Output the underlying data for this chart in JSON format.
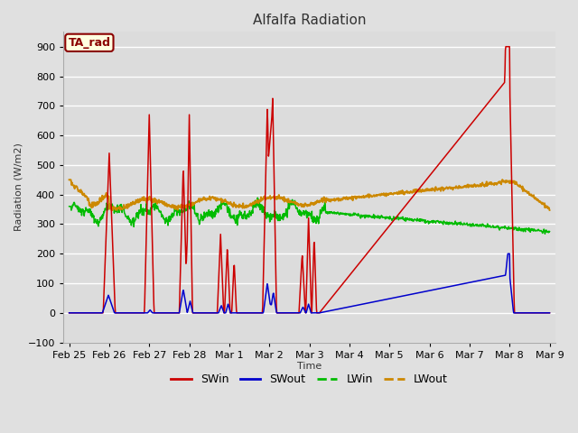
{
  "title": "Alfalfa Radiation",
  "ylabel": "Radiation (W/m2)",
  "xlabel": "Time",
  "ylim": [
    -100,
    950
  ],
  "figsize": [
    6.4,
    4.8
  ],
  "dpi": 100,
  "bg_color": "#e0e0e0",
  "plot_bg_color": "#dcdcdc",
  "grid_color": "white",
  "annotation_text": "TA_rad",
  "annotation_bg": "#ffffe0",
  "annotation_border": "#8b0000",
  "annotation_text_color": "#8b0000",
  "series_colors": {
    "SWin": "#cc0000",
    "SWout": "#0000cc",
    "LWin": "#00bb00",
    "LWout": "#cc8800"
  },
  "x_tick_labels": [
    "Feb 25",
    "Feb 26",
    "Feb 27",
    "Feb 28",
    "Mar 1",
    "Mar 2",
    "Mar 3",
    "Mar 4",
    "Mar 5",
    "Mar 6",
    "Mar 7",
    "Mar 8",
    "Mar 9"
  ],
  "x_tick_positions": [
    0,
    1,
    2,
    3,
    4,
    5,
    6,
    7,
    8,
    9,
    10,
    11,
    12
  ],
  "xlim": [
    -0.15,
    12.15
  ],
  "yticks": [
    -100,
    0,
    100,
    200,
    300,
    400,
    500,
    600,
    700,
    800,
    900
  ]
}
